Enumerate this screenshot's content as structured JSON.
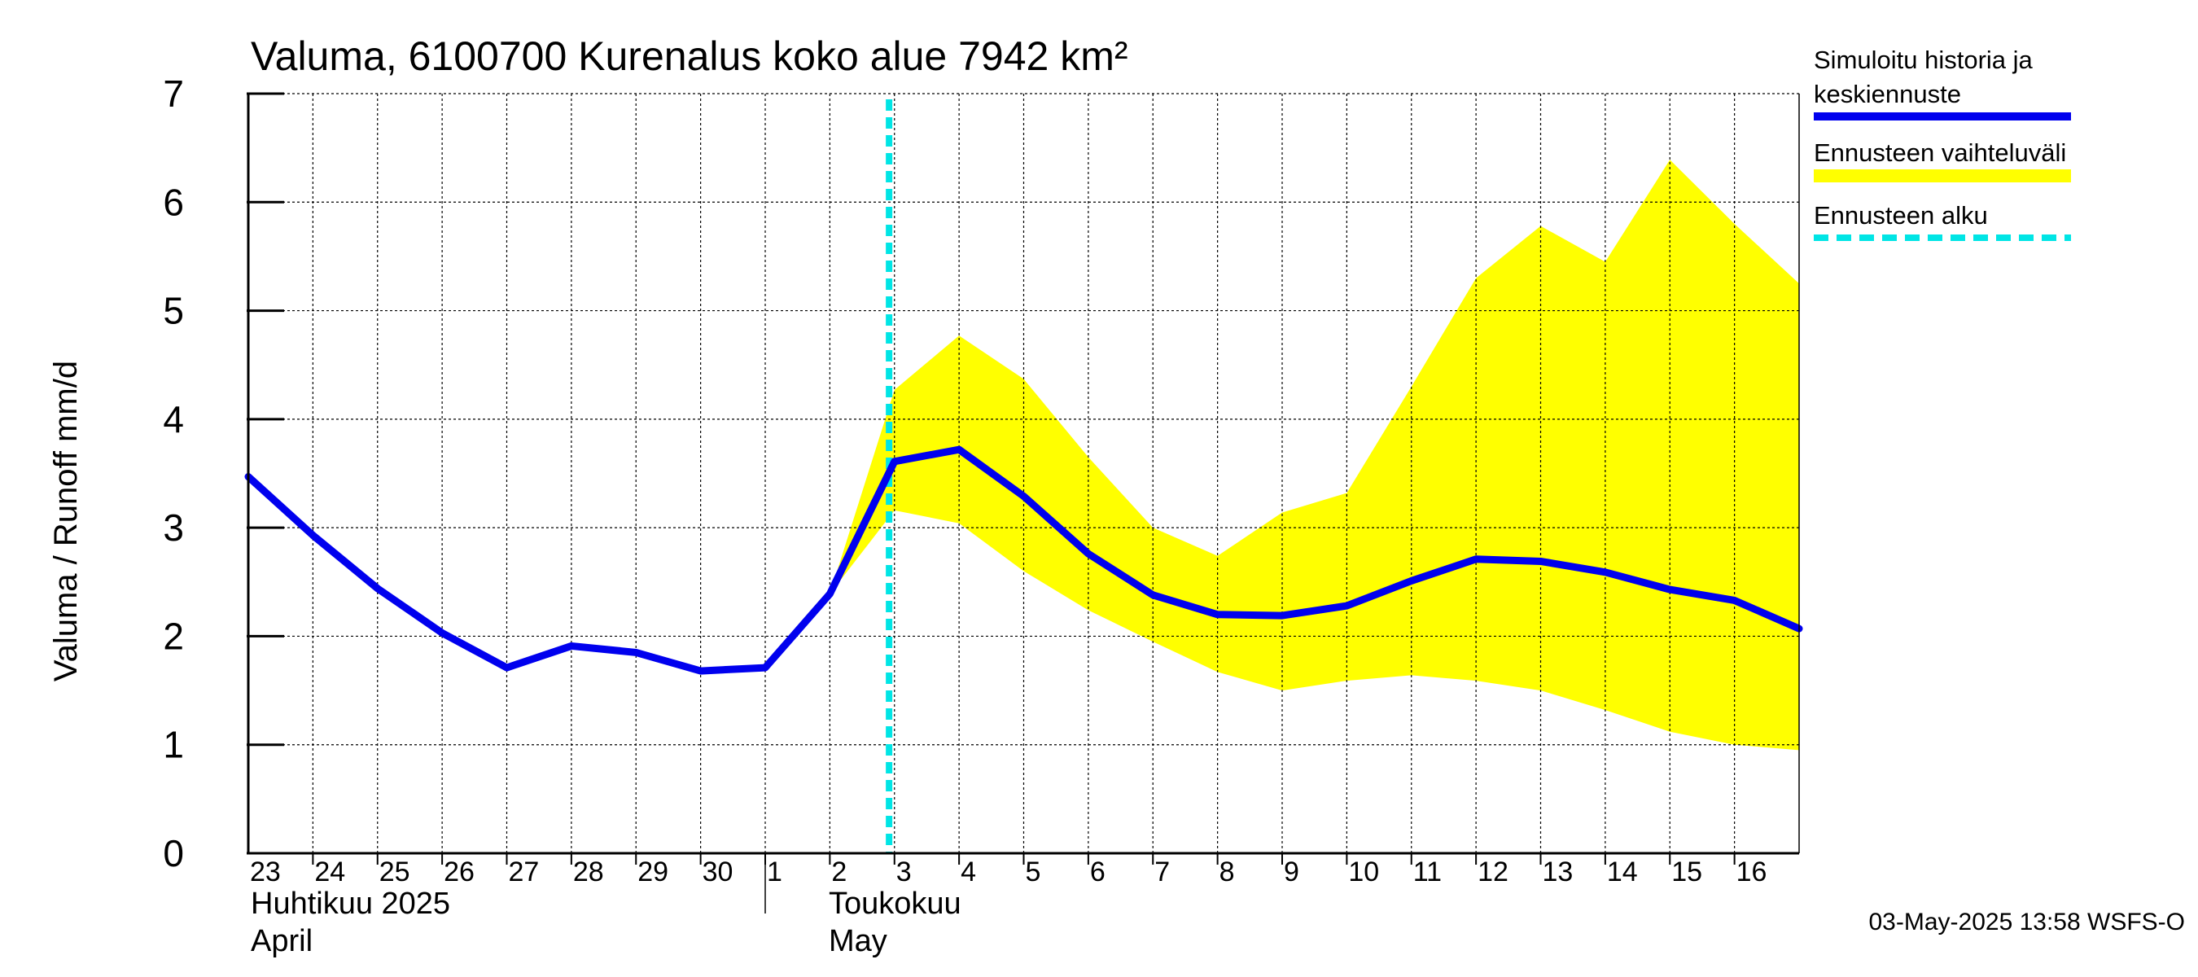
{
  "chart_data": {
    "type": "line",
    "title": "Valuma, 6100700 Kurenalus koko alue 7942 km²",
    "ylabel": "Valuma / Runoff    mm/d",
    "ylim": [
      0,
      7
    ],
    "yticks": [
      "0",
      "1",
      "2",
      "3",
      "4",
      "5",
      "6",
      "7"
    ],
    "grid": true,
    "legend_position": "right",
    "x_day_labels": [
      "23",
      "24",
      "25",
      "26",
      "27",
      "28",
      "29",
      "30",
      "1",
      "2",
      "3",
      "4",
      "5",
      "6",
      "7",
      "8",
      "9",
      "10",
      "11",
      "12",
      "13",
      "14",
      "15",
      "16"
    ],
    "month_labels": {
      "april_fi": "Huhtikuu  2025",
      "april_en": "April",
      "may_fi": "Toukokuu",
      "may_en": "May"
    },
    "series": [
      {
        "name": "Simuloitu historia ja keskiennuste",
        "color": "#0000ee",
        "x": [
          "2025-04-23",
          "2025-04-24",
          "2025-04-25",
          "2025-04-26",
          "2025-04-27",
          "2025-04-28",
          "2025-04-29",
          "2025-04-30",
          "2025-05-01",
          "2025-05-02",
          "2025-05-03",
          "2025-05-04",
          "2025-05-05",
          "2025-05-06",
          "2025-05-07",
          "2025-05-08",
          "2025-05-09",
          "2025-05-10",
          "2025-05-11",
          "2025-05-12",
          "2025-05-13",
          "2025-05-14",
          "2025-05-15",
          "2025-05-16",
          "2025-05-17"
        ],
        "values": [
          3.47,
          2.93,
          2.44,
          2.03,
          1.71,
          1.91,
          1.85,
          1.68,
          1.71,
          2.39,
          3.61,
          3.72,
          3.29,
          2.76,
          2.38,
          2.2,
          2.19,
          2.28,
          2.51,
          2.71,
          2.69,
          2.59,
          2.43,
          2.33,
          2.07
        ]
      },
      {
        "name": "Ennusteen vaihteluväli",
        "color": "#ffff00",
        "x": [
          "2025-05-02",
          "2025-05-03",
          "2025-05-04",
          "2025-05-05",
          "2025-05-06",
          "2025-05-07",
          "2025-05-08",
          "2025-05-09",
          "2025-05-10",
          "2025-05-11",
          "2025-05-12",
          "2025-05-13",
          "2025-05-14",
          "2025-05-15",
          "2025-05-16",
          "2025-05-17"
        ],
        "upper": [
          2.39,
          4.27,
          4.77,
          4.37,
          3.65,
          3.0,
          2.74,
          3.14,
          3.32,
          4.3,
          5.3,
          5.78,
          5.45,
          6.39,
          5.8,
          5.25
        ],
        "lower": [
          2.39,
          3.16,
          3.04,
          2.6,
          2.24,
          1.95,
          1.67,
          1.5,
          1.59,
          1.64,
          1.59,
          1.5,
          1.32,
          1.12,
          1.0,
          0.95
        ]
      },
      {
        "name": "Ennusteen alku",
        "color": "#00ffff",
        "x": [
          "2025-05-02T22:00"
        ]
      }
    ],
    "legend": [
      {
        "label_line1": "Simuloitu historia ja",
        "label_line2": "keskiennuste",
        "color": "#0000ee"
      },
      {
        "label_line1": "Ennusteen vaihteluväli",
        "color": "#ffff00"
      },
      {
        "label_line1": "Ennusteen alku",
        "color": "#00e5e5"
      }
    ]
  },
  "footer": {
    "timestamp": "03-May-2025 13:58 WSFS-O"
  }
}
